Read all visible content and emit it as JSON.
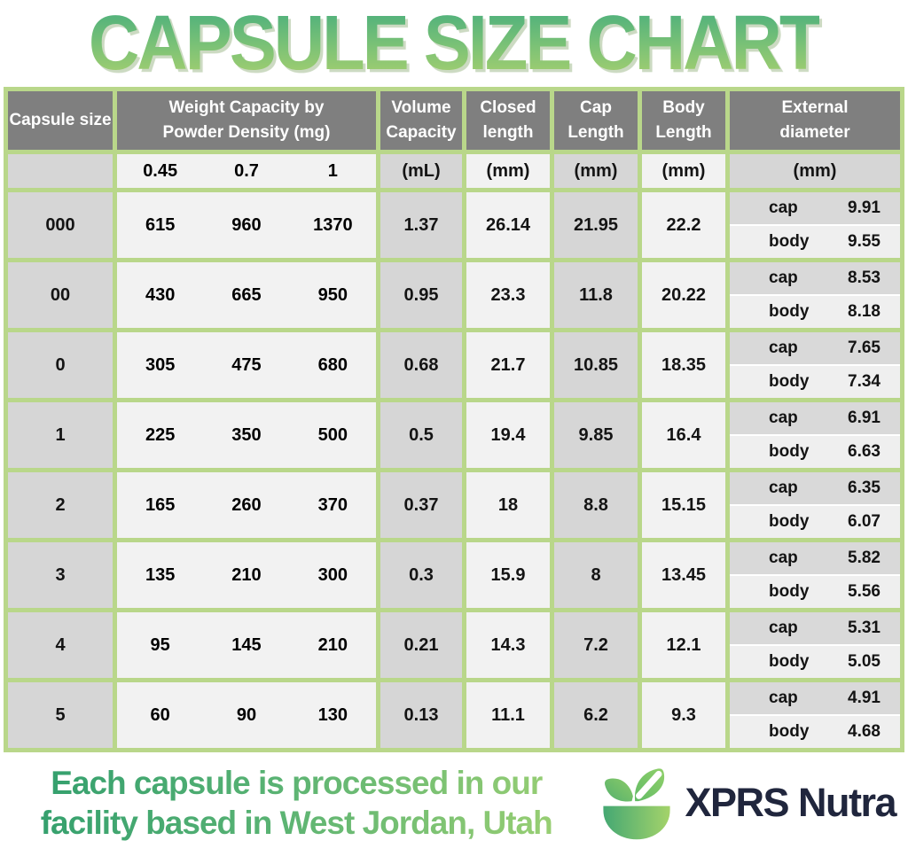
{
  "title": "CAPSULE SIZE CHART",
  "colors": {
    "table_border_green": "#b9d78a",
    "header_gray": "#7f7f7f",
    "cell_gray": "#d6d6d6",
    "cell_light": "#f2f2f2",
    "title_gradient_top": "#46ad7d",
    "title_gradient_bottom": "#a8d06f",
    "brand_navy": "#20263d"
  },
  "table": {
    "columns": {
      "size": {
        "l1": "Capsule size",
        "l2": ""
      },
      "weight": {
        "l1": "Weight Capacity by",
        "l2": "Powder Density (mg)"
      },
      "volume": {
        "l1": "Volume",
        "l2": "Capacity"
      },
      "closed": {
        "l1": "Closed",
        "l2": "length"
      },
      "cap": {
        "l1": "Cap",
        "l2": "Length"
      },
      "body": {
        "l1": "Body",
        "l2": "Length"
      },
      "external": {
        "l1": "External",
        "l2": "diameter"
      }
    },
    "subheader": {
      "densities": [
        "0.45",
        "0.7",
        "1"
      ],
      "volume_unit": "(mL)",
      "closed_unit": "(mm)",
      "cap_unit": "(mm)",
      "body_unit": "(mm)",
      "external_unit": "(mm)"
    },
    "diameter_labels": {
      "cap": "cap",
      "body": "body"
    },
    "rows": [
      {
        "size": "000",
        "weights": [
          "615",
          "960",
          "1370"
        ],
        "volume": "1.37",
        "closed": "26.14",
        "cap_length": "21.95",
        "body_length": "22.2",
        "cap_diameter": "9.91",
        "body_diameter": "9.55"
      },
      {
        "size": "00",
        "weights": [
          "430",
          "665",
          "950"
        ],
        "volume": "0.95",
        "closed": "23.3",
        "cap_length": "11.8",
        "body_length": "20.22",
        "cap_diameter": "8.53",
        "body_diameter": "8.18"
      },
      {
        "size": "0",
        "weights": [
          "305",
          "475",
          "680"
        ],
        "volume": "0.68",
        "closed": "21.7",
        "cap_length": "10.85",
        "body_length": "18.35",
        "cap_diameter": "7.65",
        "body_diameter": "7.34"
      },
      {
        "size": "1",
        "weights": [
          "225",
          "350",
          "500"
        ],
        "volume": "0.5",
        "closed": "19.4",
        "cap_length": "9.85",
        "body_length": "16.4",
        "cap_diameter": "6.91",
        "body_diameter": "6.63"
      },
      {
        "size": "2",
        "weights": [
          "165",
          "260",
          "370"
        ],
        "volume": "0.37",
        "closed": "18",
        "cap_length": "8.8",
        "body_length": "15.15",
        "cap_diameter": "6.35",
        "body_diameter": "6.07"
      },
      {
        "size": "3",
        "weights": [
          "135",
          "210",
          "300"
        ],
        "volume": "0.3",
        "closed": "15.9",
        "cap_length": "8",
        "body_length": "13.45",
        "cap_diameter": "5.82",
        "body_diameter": "5.56"
      },
      {
        "size": "4",
        "weights": [
          "95",
          "145",
          "210"
        ],
        "volume": "0.21",
        "closed": "14.3",
        "cap_length": "7.2",
        "body_length": "12.1",
        "cap_diameter": "5.31",
        "body_diameter": "5.05"
      },
      {
        "size": "5",
        "weights": [
          "60",
          "90",
          "130"
        ],
        "volume": "0.13",
        "closed": "11.1",
        "cap_length": "6.2",
        "body_length": "9.3",
        "cap_diameter": "4.91",
        "body_diameter": "4.68"
      }
    ]
  },
  "footer": {
    "line1": "Each capsule is processed in our",
    "line2": "facility based in West Jordan, Utah",
    "brand": "XPRS Nutra"
  },
  "chart_data": {
    "type": "table",
    "title": "CAPSULE SIZE CHART",
    "columns": [
      "Capsule size",
      "Weight Capacity @0.45 density (mg)",
      "Weight Capacity @0.7 density (mg)",
      "Weight Capacity @1 density (mg)",
      "Volume Capacity (mL)",
      "Closed length (mm)",
      "Cap Length (mm)",
      "Body Length (mm)",
      "External diameter cap (mm)",
      "External diameter body (mm)"
    ],
    "rows": [
      [
        "000",
        615,
        960,
        1370,
        1.37,
        26.14,
        21.95,
        22.2,
        9.91,
        9.55
      ],
      [
        "00",
        430,
        665,
        950,
        0.95,
        23.3,
        11.8,
        20.22,
        8.53,
        8.18
      ],
      [
        "0",
        305,
        475,
        680,
        0.68,
        21.7,
        10.85,
        18.35,
        7.65,
        7.34
      ],
      [
        "1",
        225,
        350,
        500,
        0.5,
        19.4,
        9.85,
        16.4,
        6.91,
        6.63
      ],
      [
        "2",
        165,
        260,
        370,
        0.37,
        18,
        8.8,
        15.15,
        6.35,
        6.07
      ],
      [
        "3",
        135,
        210,
        300,
        0.3,
        15.9,
        8,
        13.45,
        5.82,
        5.56
      ],
      [
        "4",
        95,
        145,
        210,
        0.21,
        14.3,
        7.2,
        12.1,
        5.31,
        5.05
      ],
      [
        "5",
        60,
        90,
        130,
        0.13,
        11.1,
        6.2,
        9.3,
        4.91,
        4.68
      ]
    ]
  }
}
